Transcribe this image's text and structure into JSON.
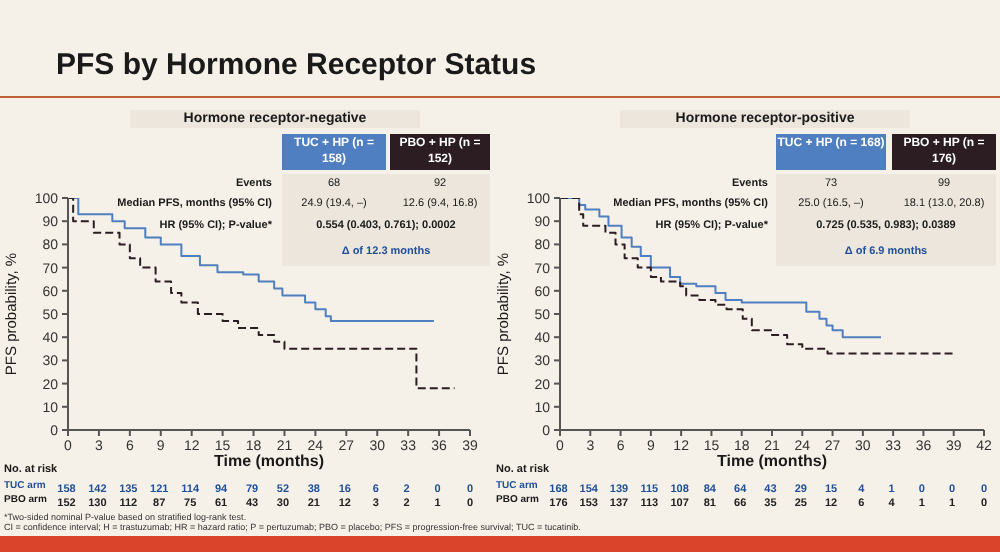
{
  "chart_data": [
    {
      "type": "step",
      "title": "PFS by Hormone Receptor Status",
      "subtitle": "Hormone receptor-negative",
      "xlabel": "Time (months)",
      "ylabel": "PFS probability, %",
      "xlim": [
        0,
        39
      ],
      "xticks": [
        0,
        3,
        6,
        9,
        12,
        15,
        18,
        21,
        24,
        27,
        30,
        33,
        36,
        39
      ],
      "ylim": [
        0,
        100
      ],
      "yticks": [
        0,
        10,
        20,
        30,
        40,
        50,
        60,
        70,
        80,
        90,
        100
      ],
      "series": [
        {
          "name": "TUC + HP (n = 158)",
          "color": "#4f7fc0",
          "line_style": "solid",
          "x": [
            0,
            1,
            4.3,
            5.5,
            7.5,
            9,
            11,
            12.8,
            14.5,
            17,
            18.5,
            20,
            20.8,
            23,
            24,
            25,
            25.5,
            35.5
          ],
          "values": [
            100,
            93,
            90,
            87,
            83,
            80,
            75,
            71,
            68,
            67,
            64,
            61,
            58,
            55,
            52,
            49,
            47,
            47
          ]
        },
        {
          "name": "PBO + HP (n = 152)",
          "color": "#2b1d22",
          "line_style": "dashed",
          "x": [
            0,
            0.5,
            2.5,
            5,
            6,
            7,
            8.5,
            10,
            11,
            12.6,
            15,
            16.5,
            18.5,
            20,
            21,
            33.8,
            37.5
          ],
          "values": [
            100,
            90,
            85,
            80,
            74,
            70,
            64,
            59,
            55,
            50,
            47,
            44,
            41,
            38,
            35,
            18,
            18
          ]
        }
      ],
      "annotations": [
        "Events",
        "68",
        "92",
        "Median PFS, months (95% CI)",
        "24.9 (19.4, –)",
        "12.6 (9.4, 16.8)",
        "HR (95% CI); P-value*",
        "0.554 (0.403, 0.761); 0.0002",
        "Δ of 12.3 months",
        "No. at risk",
        "TUC arm",
        "PBO arm",
        "158 142 135 121 114 94 79 52 38 16 6 2 0 0",
        "152 130 112 87 75 61 43 30 21 12 3 2 1 0",
        "*Two-sided nominal P-value based on stratified log-rank test.",
        "CI = confidence interval; H = trastuzumab; HR = hazard ratio; P = pertuzumab; PBO = placebo; PFS = progression-free survival; TUC = tucatinib."
      ]
    },
    {
      "type": "step",
      "subtitle": "Hormone receptor-positive",
      "xlabel": "Time (months)",
      "ylabel": "PFS probability, %",
      "xlim": [
        0,
        42
      ],
      "xticks": [
        0,
        3,
        6,
        9,
        12,
        15,
        18,
        21,
        24,
        27,
        30,
        33,
        36,
        39,
        42
      ],
      "ylim": [
        0,
        100
      ],
      "yticks": [
        0,
        10,
        20,
        30,
        40,
        50,
        60,
        70,
        80,
        90,
        100
      ],
      "series": [
        {
          "name": "TUC + HP (n = 168)",
          "color": "#4f7fc0",
          "line_style": "solid",
          "x": [
            0,
            1.9,
            2.5,
            3.9,
            4.8,
            6.1,
            7.1,
            8,
            9,
            10.9,
            11.9,
            13.5,
            15.4,
            16.4,
            18,
            24.4,
            25.7,
            26.4,
            27,
            28,
            31.8
          ],
          "values": [
            100,
            97,
            95,
            92,
            88,
            83,
            79,
            75,
            70,
            66,
            63,
            62,
            59,
            56,
            55,
            51,
            48,
            45,
            43,
            40,
            40
          ]
        },
        {
          "name": "PBO + HP (n = 176)",
          "color": "#2b1d22",
          "line_style": "dashed",
          "x": [
            0,
            1.9,
            2.3,
            4.5,
            5.5,
            6.4,
            7.7,
            9,
            10,
            11.9,
            12.5,
            13.8,
            15.4,
            16.5,
            18.1,
            19,
            21,
            22.5,
            24,
            26.5,
            39.2
          ],
          "values": [
            100,
            93,
            88,
            85,
            80,
            74,
            70,
            66,
            64,
            62,
            58,
            56,
            54,
            52,
            48,
            43,
            41,
            37,
            35,
            33,
            33
          ]
        }
      ],
      "annotations": [
        "Events",
        "73",
        "99",
        "Median PFS, months (95% CI)",
        "25.0 (16.5, –)",
        "18.1 (13.0, 20.8)",
        "HR (95% CI); P-value*",
        "0.725 (0.535, 0.983); 0.0389",
        "Δ of 6.9 months",
        "No. at risk",
        "TUC arm",
        "PBO arm",
        "168 154 139 115 108 84 64 43 29 15 4 1 0 0 0",
        "176 153 137 113 107 81 66 35 25 12 6 4 1 1 0"
      ]
    }
  ]
}
